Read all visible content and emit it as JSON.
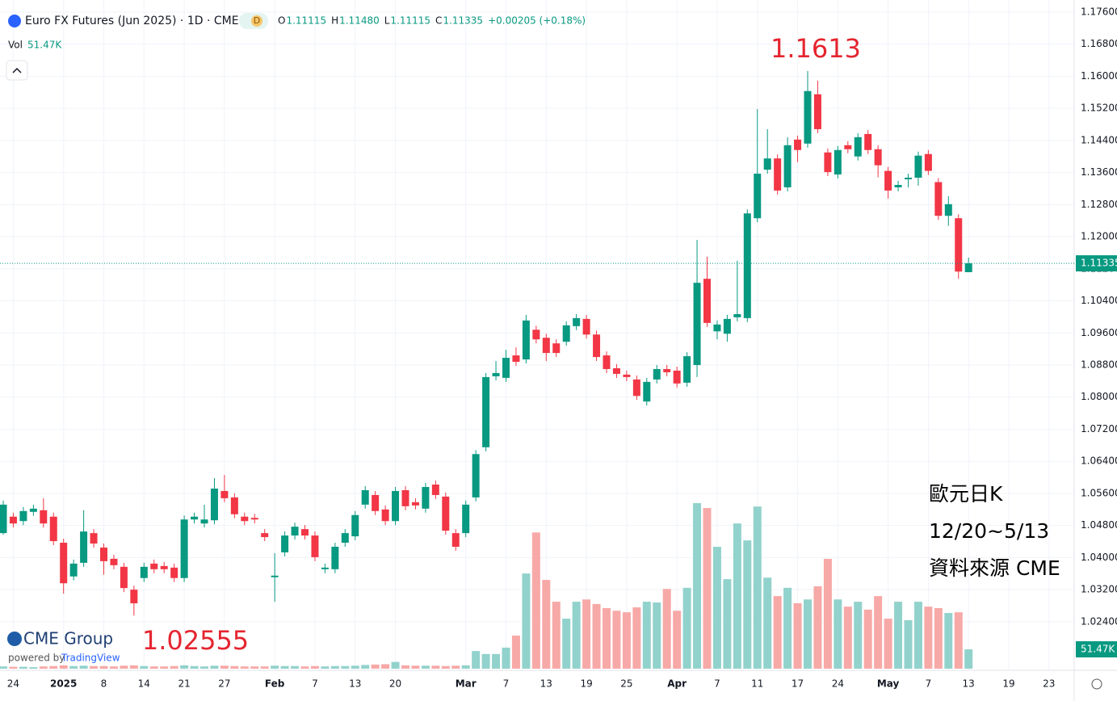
{
  "header": {
    "title": "Euro FX Futures (Jun 2025) · 1D · CME",
    "badge": "D",
    "ohlc": [
      {
        "key": "O",
        "value": "1.11115"
      },
      {
        "key": "H",
        "value": "1.11480"
      },
      {
        "key": "L",
        "value": "1.11115"
      },
      {
        "key": "C",
        "value": "1.11335"
      }
    ],
    "change": "+0.00205 (+0.18%)",
    "vol_key": "Vol",
    "vol_value": "51.47K"
  },
  "chart_data": {
    "type": "candlestick",
    "up_color": "#089981",
    "down_color": "#f23645",
    "up_volume_color": "#92d2cc",
    "down_volume_color": "#f7a9a7",
    "open": [
      1.0461,
      1.0502,
      1.0491,
      1.0514,
      1.0518,
      1.0502,
      1.0437,
      1.0353,
      1.0387,
      1.0461,
      1.0425,
      1.0397,
      1.0377,
      1.032,
      1.0349,
      1.0385,
      1.0379,
      1.0375,
      1.0349,
      1.0495,
      1.0485,
      1.0493,
      1.0566,
      1.055,
      1.0502,
      1.0499,
      1.0461,
      1.0351,
      1.0413,
      1.0455,
      1.0471,
      1.0455,
      1.0371,
      1.0371,
      1.0437,
      1.0453,
      1.0532,
      1.0556,
      1.052,
      1.0491,
      1.0568,
      1.0538,
      1.0522,
      1.0582,
      1.0552,
      1.0461,
      1.0461,
      1.055,
      1.0675,
      1.0852,
      1.0848,
      1.0904,
      1.0894,
      1.0968,
      1.0948,
      1.0934,
      1.0938,
      1.0977,
      1.0995,
      1.0956,
      1.0904,
      1.0872,
      1.0856,
      1.0844,
      1.0789,
      1.0844,
      1.087,
      1.0866,
      1.0836,
      1.088,
      1.1095,
      1.0964,
      1.0958,
      1.0999,
      1.0997,
      1.1246,
      1.1367,
      1.1395,
      1.1323,
      1.1442,
      1.1432,
      1.1555,
      1.141,
      1.1355,
      1.1428,
      1.14,
      1.1456,
      1.1418,
      1.1364,
      1.1323,
      1.1343,
      1.1347,
      1.1406,
      1.1336,
      1.1252,
      1.1246,
      1.11115
    ],
    "high": [
      1.0542,
      1.0512,
      1.0526,
      1.0532,
      1.0548,
      1.0512,
      1.0447,
      1.0395,
      1.0518,
      1.0471,
      1.0435,
      1.0407,
      1.0387,
      1.033,
      1.0387,
      1.0395,
      1.0389,
      1.0385,
      1.0505,
      1.0512,
      1.0532,
      1.0598,
      1.0606,
      1.056,
      1.0512,
      1.0509,
      1.0471,
      1.0411,
      1.0465,
      1.0487,
      1.0481,
      1.0465,
      1.0385,
      1.0437,
      1.0471,
      1.0516,
      1.0578,
      1.0566,
      1.053,
      1.0576,
      1.0578,
      1.0548,
      1.0586,
      1.0592,
      1.0562,
      1.0471,
      1.0542,
      1.0668,
      1.086,
      1.089,
      1.0918,
      1.0924,
      1.1005,
      1.0978,
      1.0958,
      1.0944,
      1.0989,
      1.1007,
      1.1005,
      1.0966,
      1.0914,
      1.0882,
      1.0866,
      1.0854,
      1.0848,
      1.088,
      1.088,
      1.0876,
      1.0912,
      1.1192,
      1.115,
      1.0991,
      1.1005,
      1.114,
      1.1268,
      1.1518,
      1.1468,
      1.1405,
      1.1448,
      1.1452,
      1.1613,
      1.1589,
      1.142,
      1.1426,
      1.1438,
      1.1458,
      1.1466,
      1.1428,
      1.1374,
      1.1339,
      1.1357,
      1.1412,
      1.1416,
      1.1346,
      1.1301,
      1.1256,
      1.1148
    ],
    "low": [
      1.0457,
      1.0475,
      1.0481,
      1.0504,
      1.0475,
      1.0431,
      1.031,
      1.0343,
      1.0377,
      1.0425,
      1.0357,
      1.0371,
      1.0314,
      1.02555,
      1.0339,
      1.0361,
      1.0361,
      1.0339,
      1.0339,
      1.0485,
      1.0475,
      1.0483,
      1.0538,
      1.0498,
      1.0481,
      1.0485,
      1.0441,
      1.029,
      1.0403,
      1.0445,
      1.0445,
      1.0391,
      1.0361,
      1.0361,
      1.0427,
      1.0443,
      1.0522,
      1.0506,
      1.0481,
      1.0481,
      1.0518,
      1.052,
      1.0512,
      1.0546,
      1.0457,
      1.0417,
      1.0451,
      1.054,
      1.0665,
      1.0842,
      1.0838,
      1.0878,
      1.0884,
      1.0934,
      1.089,
      1.09,
      1.0928,
      1.0967,
      1.0946,
      1.089,
      1.086,
      1.0848,
      1.084,
      1.0793,
      1.0779,
      1.0834,
      1.0852,
      1.0824,
      1.0826,
      1.085,
      1.0975,
      1.0944,
      1.0938,
      1.0989,
      1.0987,
      1.1236,
      1.1357,
      1.1305,
      1.1313,
      1.1386,
      1.1422,
      1.1458,
      1.1351,
      1.1345,
      1.1408,
      1.139,
      1.1406,
      1.1348,
      1.1295,
      1.1313,
      1.1323,
      1.1327,
      1.1354,
      1.1242,
      1.1227,
      1.1095,
      1.11115
    ],
    "close": [
      1.0532,
      1.0485,
      1.0516,
      1.0522,
      1.0485,
      1.0441,
      1.0336,
      1.0385,
      1.0465,
      1.0435,
      1.0391,
      1.0381,
      1.0324,
      1.0286,
      1.0377,
      1.0371,
      1.0371,
      1.0349,
      1.0495,
      1.0502,
      1.0495,
      1.0572,
      1.0548,
      1.0508,
      1.0491,
      1.0495,
      1.0451,
      1.0355,
      1.0455,
      1.0477,
      1.0455,
      1.0401,
      1.0375,
      1.0427,
      1.0461,
      1.0506,
      1.0568,
      1.0516,
      1.0491,
      1.0566,
      1.0528,
      1.053,
      1.0576,
      1.0556,
      1.0467,
      1.0427,
      1.0532,
      1.0658,
      1.085,
      1.086,
      1.0898,
      1.0888,
      1.0991,
      1.0944,
      1.091,
      1.091,
      1.0979,
      1.0997,
      1.0956,
      1.09,
      1.087,
      1.0858,
      1.085,
      1.0803,
      1.0838,
      1.087,
      1.0862,
      1.0834,
      1.0902,
      1.1085,
      1.0985,
      1.0981,
      1.0995,
      1.1007,
      1.1258,
      1.1357,
      1.1395,
      1.1315,
      1.1428,
      1.1416,
      1.1563,
      1.1468,
      1.1361,
      1.1416,
      1.1418,
      1.1448,
      1.1416,
      1.1378,
      1.1315,
      1.1329,
      1.1347,
      1.1402,
      1.1364,
      1.1252,
      1.1281,
      1.1113,
      1.11335
    ],
    "volume": [
      6000,
      5000,
      5000,
      4000,
      6000,
      7000,
      9000,
      7000,
      8000,
      7000,
      7000,
      6000,
      8000,
      9000,
      7000,
      6000,
      6000,
      7000,
      9000,
      7000,
      6000,
      8000,
      8000,
      7000,
      6000,
      6000,
      6000,
      8000,
      7000,
      7000,
      6000,
      7000,
      6000,
      7000,
      7000,
      8000,
      10000,
      11000,
      12000,
      18000,
      9000,
      8000,
      8000,
      8000,
      7000,
      8000,
      9000,
      47000,
      39000,
      39000,
      56000,
      88000,
      253000,
      362000,
      236000,
      178000,
      133000,
      178000,
      184000,
      172000,
      161000,
      154000,
      150000,
      163000,
      178000,
      176000,
      212000,
      154000,
      215000,
      440000,
      427000,
      324000,
      238000,
      386000,
      341000,
      431000,
      242000,
      193000,
      215000,
      174000,
      184000,
      219000,
      292000,
      184000,
      165000,
      178000,
      157000,
      193000,
      133000,
      178000,
      129000,
      178000,
      165000,
      161000,
      148000,
      150000,
      51470
    ],
    "volume_label": "51.47K",
    "ylim": [
      1.0123,
      1.179
    ],
    "yticks": [
      {
        "value": 1.176,
        "label": "1.17600"
      },
      {
        "value": 1.168,
        "label": "1.16800"
      },
      {
        "value": 1.16,
        "label": "1.16000"
      },
      {
        "value": 1.152,
        "label": "1.15200"
      },
      {
        "value": 1.144,
        "label": "1.14400"
      },
      {
        "value": 1.136,
        "label": "1.13600"
      },
      {
        "value": 1.128,
        "label": "1.12800"
      },
      {
        "value": 1.12,
        "label": "1.12000"
      },
      {
        "value": 1.112,
        "label": "1.11200"
      },
      {
        "value": 1.104,
        "label": "1.10400"
      },
      {
        "value": 1.096,
        "label": "1.09600"
      },
      {
        "value": 1.088,
        "label": "1.08800"
      },
      {
        "value": 1.08,
        "label": "1.08000"
      },
      {
        "value": 1.072,
        "label": "1.07200"
      },
      {
        "value": 1.064,
        "label": "1.06400"
      },
      {
        "value": 1.056,
        "label": "1.05600"
      },
      {
        "value": 1.048,
        "label": "1.04800"
      },
      {
        "value": 1.04,
        "label": "1.04000"
      },
      {
        "value": 1.032,
        "label": "1.03200"
      },
      {
        "value": 1.024,
        "label": "1.02400"
      }
    ],
    "xticks": [
      {
        "value": 1,
        "label": "24"
      },
      {
        "value": 6,
        "label": "2025"
      },
      {
        "value": 10,
        "label": "8"
      },
      {
        "value": 14,
        "label": "14"
      },
      {
        "value": 18,
        "label": "21"
      },
      {
        "value": 22,
        "label": "27"
      },
      {
        "value": 27,
        "label": "Feb"
      },
      {
        "value": 31,
        "label": "7"
      },
      {
        "value": 35,
        "label": "13"
      },
      {
        "value": 39,
        "label": "20"
      },
      {
        "value": 46,
        "label": "Mar"
      },
      {
        "value": 50,
        "label": "7"
      },
      {
        "value": 54,
        "label": "13"
      },
      {
        "value": 58,
        "label": "19"
      },
      {
        "value": 62,
        "label": "25"
      },
      {
        "value": 67,
        "label": "Apr"
      },
      {
        "value": 71,
        "label": "7"
      },
      {
        "value": 75,
        "label": "11"
      },
      {
        "value": 79,
        "label": "17"
      },
      {
        "value": 83,
        "label": "24"
      },
      {
        "value": 88,
        "label": "May"
      },
      {
        "value": 92,
        "label": "7"
      },
      {
        "value": 96,
        "label": "13"
      },
      {
        "value": 100,
        "label": "19"
      },
      {
        "value": 104,
        "label": "23"
      }
    ],
    "grid": true,
    "annotations": [
      "1.1613",
      "1.02555"
    ],
    "note": [
      "歐元日K",
      "12/20~5/13",
      "資料來源 CME"
    ]
  },
  "branding": {
    "logo": "CME Group",
    "powered": "powered by",
    "tv": "TradingView"
  }
}
